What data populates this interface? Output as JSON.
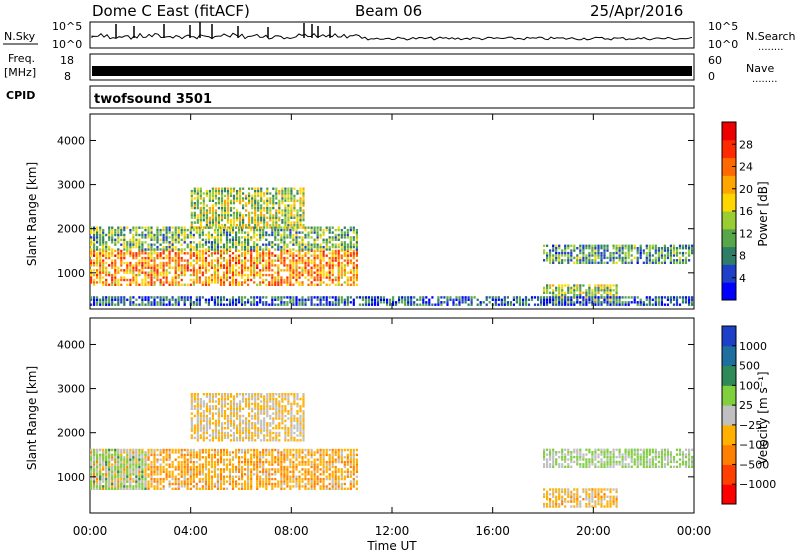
{
  "header": {
    "site": "Dome C East (fitACF)",
    "beam": "Beam 06",
    "date": "25/Apr/2016"
  },
  "status_panels": {
    "nsky_label": "N.Sky",
    "nsky_ticks": [
      "10^5",
      "10^0"
    ],
    "nsearch_label": "N.Search",
    "nsearch_ticks": [
      "10^5",
      "10^0"
    ],
    "freq_label_1": "Freq.",
    "freq_label_2": "[MHz]",
    "freq_ticks": [
      "18",
      "8"
    ],
    "nave_label": "Nave",
    "nave_ticks": [
      "60",
      "0"
    ],
    "cpid_label": "CPID",
    "cpid_value": "twofsound 3501",
    "dots": "........"
  },
  "chart_data": [
    {
      "type": "heatmap",
      "name": "power",
      "ylabel": "Slant Range [km]",
      "xlabel": "Time UT",
      "ylim": [
        180,
        4600
      ],
      "y_ticks": [
        "1000",
        "2000",
        "3000",
        "4000"
      ],
      "x_ticks": [
        "00:00",
        "04:00",
        "08:00",
        "12:00",
        "16:00",
        "20:00",
        "00:00"
      ],
      "colorbar_label": "Power [dB]",
      "colorbar_ticks": [
        "28",
        "24",
        "20",
        "16",
        "12",
        "8",
        "4"
      ],
      "colorbar_colors": [
        "#0000ff",
        "#1e40c8",
        "#2e7d66",
        "#58a64a",
        "#9acd32",
        "#ffd700",
        "#ffa500",
        "#ff6a00",
        "#ff2a00",
        "#ee0000"
      ],
      "regions": [
        {
          "t0": 0.0,
          "t1": 10.6,
          "r0": 700,
          "r1": 1500,
          "value": 22
        },
        {
          "t0": 0.0,
          "t1": 10.6,
          "r0": 1500,
          "r1": 2000,
          "value": 12
        },
        {
          "t0": 4.0,
          "t1": 8.5,
          "r0": 2000,
          "r1": 2900,
          "value": 15
        },
        {
          "t0": 18.0,
          "t1": 23.9,
          "r0": 1200,
          "r1": 1600,
          "value": 10
        },
        {
          "t0": 18.0,
          "t1": 21.0,
          "r0": 300,
          "r1": 700,
          "value": 14
        },
        {
          "t0": 0.0,
          "t1": 24.0,
          "r0": 250,
          "r1": 450,
          "value": 6
        }
      ]
    },
    {
      "type": "heatmap",
      "name": "velocity",
      "ylabel": "Slant Range [km]",
      "xlabel": "Time UT",
      "ylim": [
        180,
        4600
      ],
      "y_ticks": [
        "1000",
        "2000",
        "3000",
        "4000"
      ],
      "x_ticks": [
        "00:00",
        "04:00",
        "08:00",
        "12:00",
        "16:00",
        "20:00",
        "00:00"
      ],
      "colorbar_label": "Velocity [m s⁻¹]",
      "colorbar_ticks": [
        "1000",
        "500",
        "100",
        "25",
        "−25",
        "−100",
        "−500",
        "−1000"
      ],
      "colorbar_colors": [
        "#ff0000",
        "#ff4000",
        "#ff8000",
        "#ffb000",
        "#c0c0c0",
        "#7fcf3f",
        "#2e8b57",
        "#1e6fa0",
        "#1e40c8"
      ],
      "regions": [
        {
          "t0": 0.0,
          "t1": 10.6,
          "r0": 700,
          "r1": 1600,
          "value": -300
        },
        {
          "t0": 0.0,
          "t1": 2.2,
          "r0": 700,
          "r1": 1600,
          "value": 200
        },
        {
          "t0": 4.0,
          "t1": 8.5,
          "r0": 1800,
          "r1": 2900,
          "value": -150
        },
        {
          "t0": 18.0,
          "t1": 23.9,
          "r0": 1200,
          "r1": 1600,
          "value": 150
        },
        {
          "t0": 18.0,
          "t1": 21.0,
          "r0": 300,
          "r1": 700,
          "value": -200
        }
      ]
    }
  ]
}
